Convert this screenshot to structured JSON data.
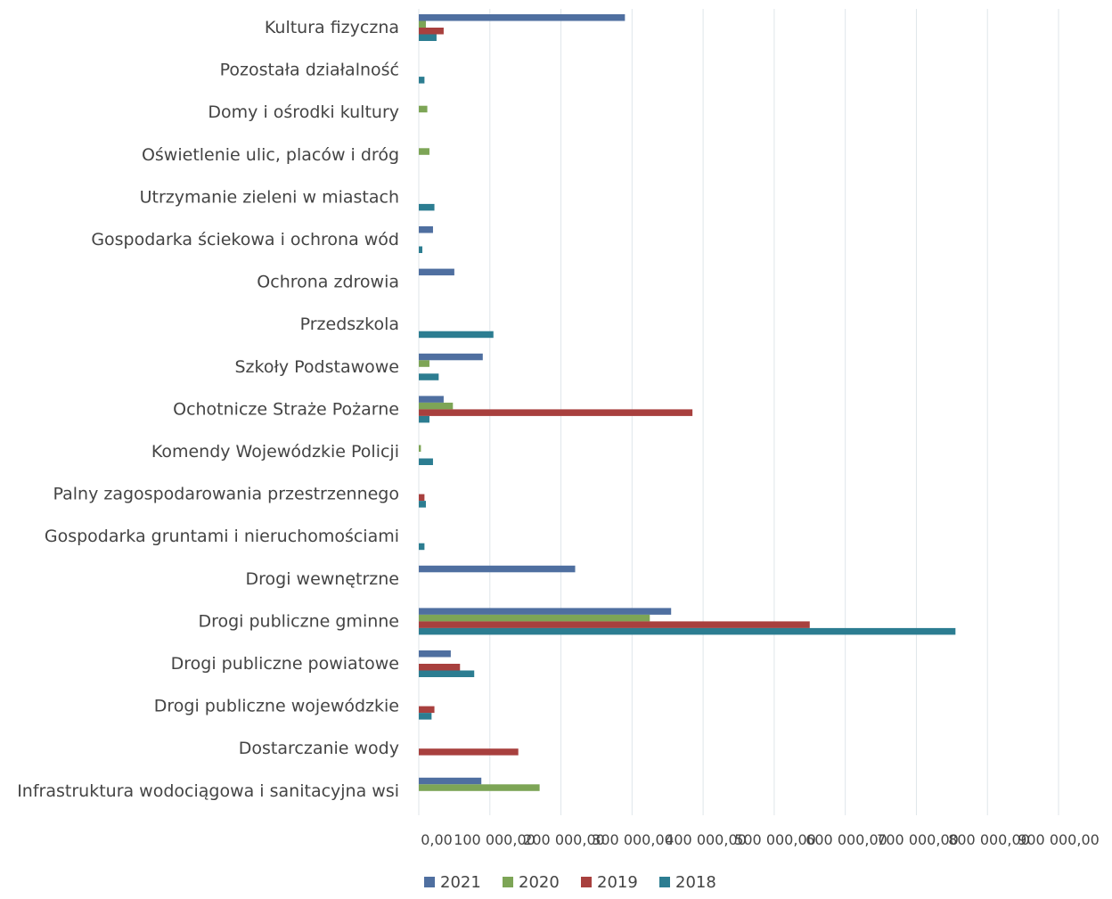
{
  "chart_data": {
    "type": "bar",
    "orientation": "horizontal",
    "categories": [
      "Kultura fizyczna",
      "Pozostała działalność",
      "Domy i ośrodki  kultury",
      "Oświetlenie ulic, placów i dróg",
      "Utrzymanie zieleni w miastach",
      "Gospodarka ściekowa i ochrona wód",
      "Ochrona zdrowia",
      "Przedszkola",
      "Szkoły Podstawowe",
      "Ochotnicze Straże Pożarne",
      "Komendy Wojewódzkie Policji",
      "Palny zagospodarowania przestrzennego",
      "Gospodarka gruntami i nieruchomościami",
      "Drogi wewnętrzne",
      "Drogi publiczne gminne",
      "Drogi publiczne powiatowe",
      "Drogi publiczne wojewódzkie",
      "Dostarczanie wody",
      "Infrastruktura wodociągowa i sanitacyjna wsi"
    ],
    "series": [
      {
        "name": "2021",
        "color": "#4f6fa0",
        "values": [
          290000,
          0,
          0,
          0,
          0,
          20000,
          50000,
          0,
          90000,
          35000,
          0,
          0,
          0,
          220000,
          355000,
          45000,
          0,
          0,
          88000
        ]
      },
      {
        "name": "2020",
        "color": "#7da556",
        "values": [
          10000,
          0,
          12000,
          15000,
          0,
          0,
          0,
          0,
          15000,
          48000,
          3000,
          0,
          0,
          0,
          325000,
          0,
          0,
          0,
          170000
        ]
      },
      {
        "name": "2019",
        "color": "#a8403e",
        "values": [
          35000,
          0,
          0,
          0,
          0,
          0,
          0,
          0,
          0,
          385000,
          0,
          8000,
          0,
          0,
          550000,
          58000,
          22000,
          140000,
          0
        ]
      },
      {
        "name": "2018",
        "color": "#2c7d91",
        "values": [
          25000,
          8000,
          0,
          0,
          22000,
          5000,
          0,
          105000,
          28000,
          15000,
          20000,
          10000,
          8000,
          0,
          755000,
          78000,
          18000,
          0,
          0
        ]
      }
    ],
    "x_ticks": [
      "0,00",
      "100 000,00",
      "200 000,00",
      "300 000,00",
      "400 000,00",
      "500 000,00",
      "600 000,00",
      "700 000,00",
      "800 000,00",
      "900 000,00"
    ],
    "xlim": [
      0,
      900000
    ],
    "grid": true,
    "legend_position": "bottom"
  }
}
